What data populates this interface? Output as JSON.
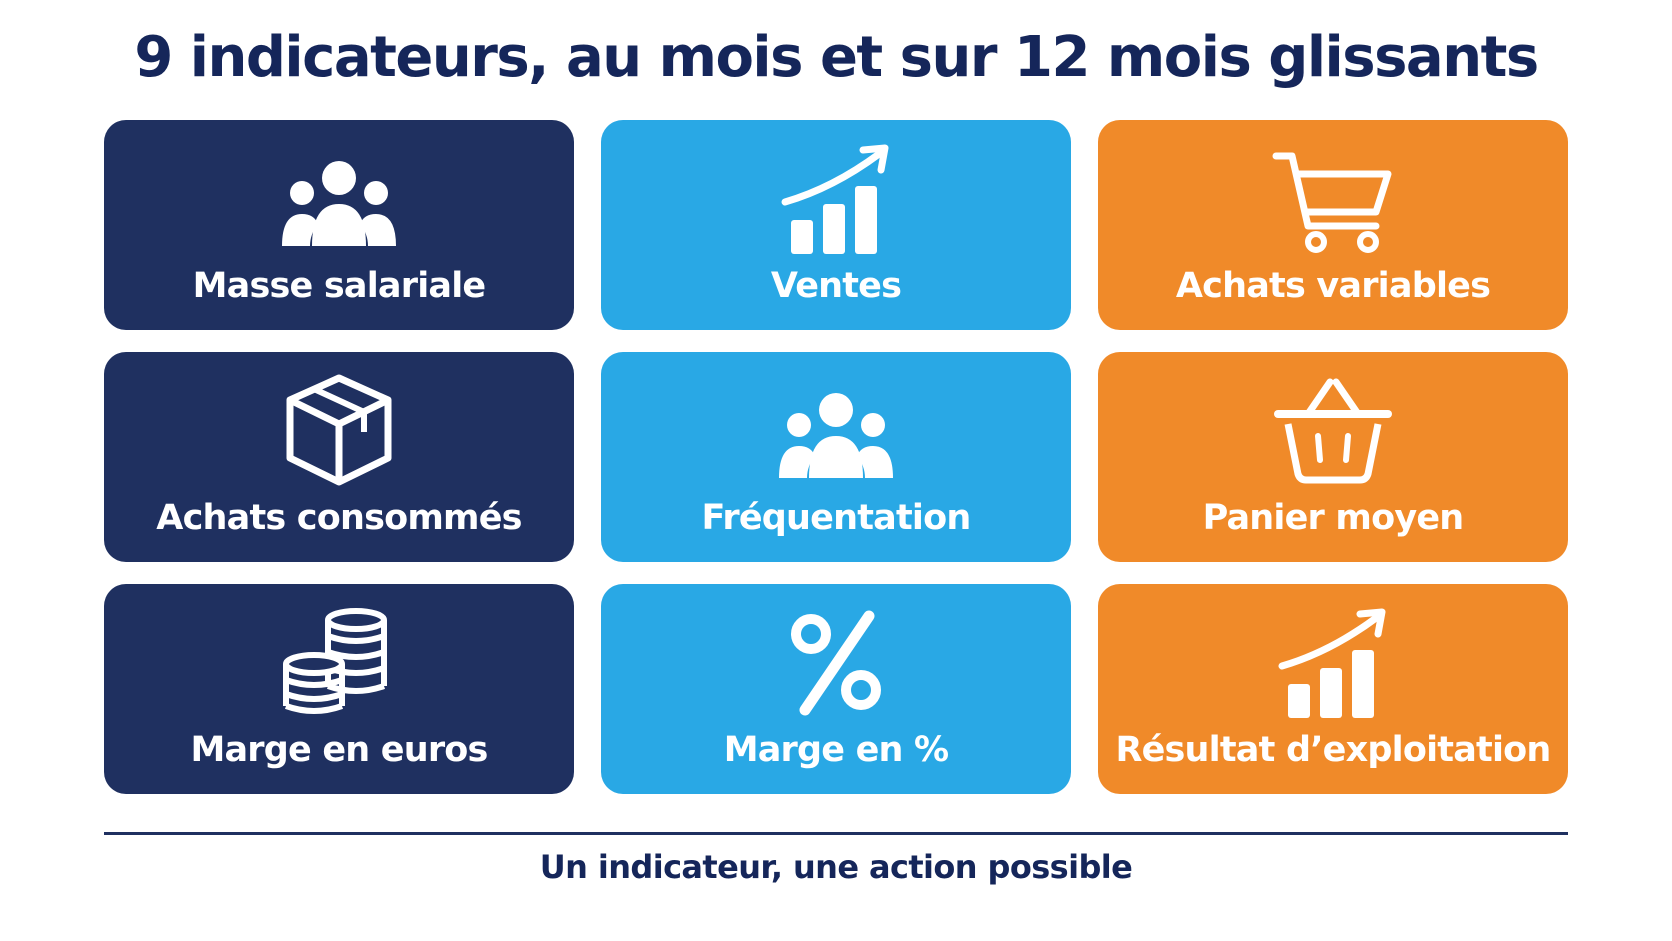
{
  "title": "9 indicateurs, au mois et sur 12 mois glissants",
  "colors": {
    "navy": "#1f3060",
    "blue": "#29a8e5",
    "orange": "#f08a29",
    "text_dark": "#15265a",
    "divider": "#1f3060"
  },
  "cards": [
    {
      "label": "Masse salariale",
      "icon": "people-group-icon",
      "color": "#1f3060"
    },
    {
      "label": "Ventes",
      "icon": "growth-chart-icon",
      "color": "#29a8e5"
    },
    {
      "label": "Achats variables",
      "icon": "shopping-cart-icon",
      "color": "#f08a29"
    },
    {
      "label": "Achats consommés",
      "icon": "package-box-icon",
      "color": "#1f3060"
    },
    {
      "label": "Fréquentation",
      "icon": "people-group-icon",
      "color": "#29a8e5"
    },
    {
      "label": "Panier moyen",
      "icon": "shopping-basket-icon",
      "color": "#f08a29"
    },
    {
      "label": "Marge en euros",
      "icon": "coin-stacks-icon",
      "color": "#1f3060"
    },
    {
      "label": "Marge en %",
      "icon": "percent-icon",
      "color": "#29a8e5"
    },
    {
      "label": "Résultat d’exploitation",
      "icon": "growth-chart-icon",
      "color": "#f08a29"
    }
  ],
  "footer": "Un indicateur, une action possible"
}
